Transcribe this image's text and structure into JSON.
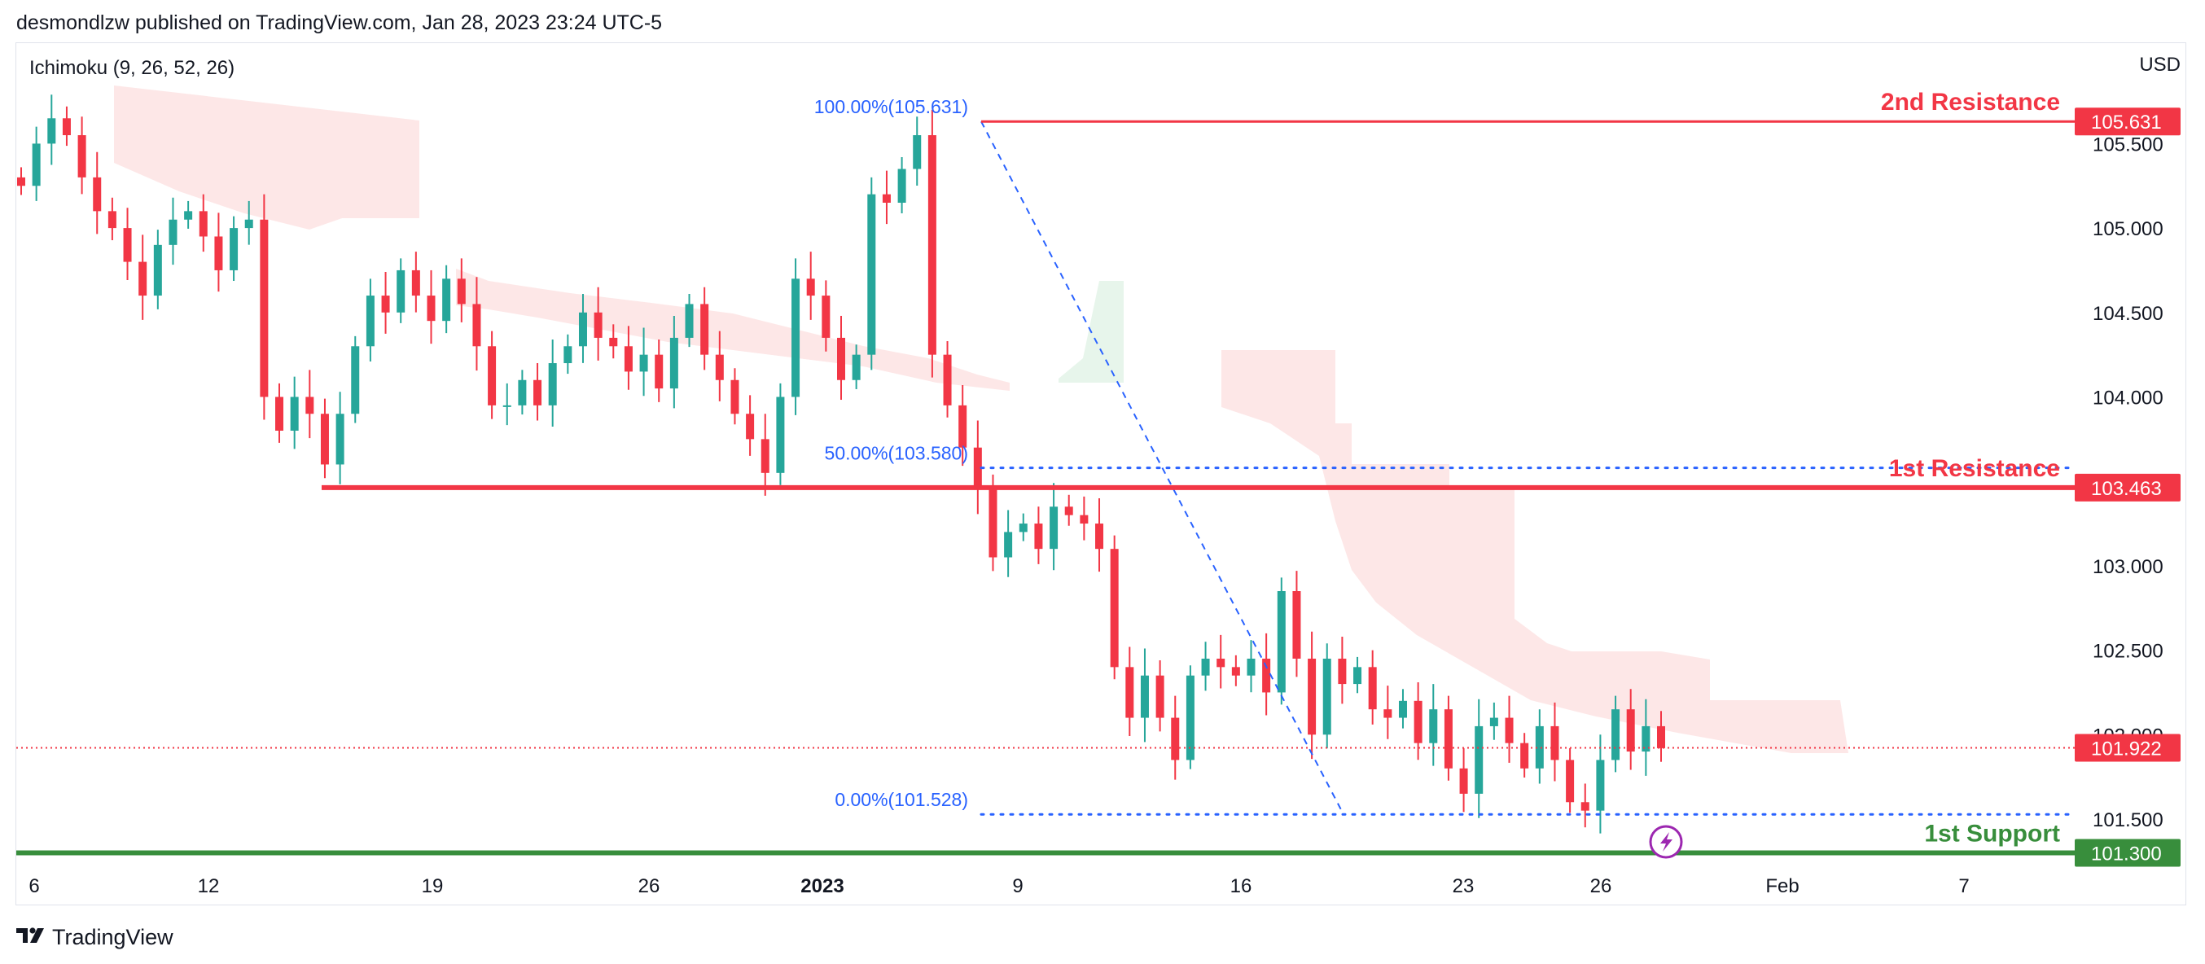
{
  "header": {
    "published_line": "desmondlzw published on TradingView.com, Jan 28, 2023 23:24 UTC-5"
  },
  "indicator": {
    "label": "Ichimoku (9, 26, 52, 26)"
  },
  "axis": {
    "currency": "USD"
  },
  "footer": {
    "brand": "TradingView"
  },
  "colors": {
    "up": "#26a69a",
    "down": "#f23645",
    "resistance": "#f23645",
    "support": "#388e3c",
    "fib": "#2962ff",
    "cloud_bear": "#fde3e3",
    "cloud_bull": "#e3f3e8",
    "current_price": "#f23645"
  },
  "chart_data": {
    "type": "candlestick",
    "title": "",
    "x_tick_labels": [
      "6",
      "12",
      "19",
      "26",
      "2023",
      "9",
      "16",
      "23",
      "26",
      "Feb",
      "7"
    ],
    "y_tick_labels": [
      "105.500",
      "105.000",
      "104.500",
      "104.000",
      "103.000",
      "102.500",
      "102.000",
      "101.500"
    ],
    "ylim": [
      101.2,
      105.85
    ],
    "grid": false,
    "levels": [
      {
        "name": "2nd Resistance",
        "value": 105.631,
        "label": "105.631",
        "color": "#f23645"
      },
      {
        "name": "1st Resistance",
        "value": 103.463,
        "label": "103.463",
        "color": "#f23645"
      },
      {
        "name": "1st Support",
        "value": 101.3,
        "label": "101.300",
        "color": "#388e3c"
      }
    ],
    "current_price": {
      "value": 101.922,
      "label": "101.922"
    },
    "fibonacci": [
      {
        "label": "100.00%(105.631)",
        "value": 105.631
      },
      {
        "label": "50.00%(103.580)",
        "value": 103.58
      },
      {
        "label": "0.00%(101.528)",
        "value": 101.528
      }
    ],
    "close_series": [
      105.25,
      105.5,
      105.65,
      105.55,
      105.3,
      105.1,
      105.0,
      104.8,
      104.6,
      104.9,
      105.05,
      105.1,
      104.95,
      104.75,
      105.0,
      105.05,
      104.0,
      103.8,
      104.0,
      103.9,
      103.6,
      103.9,
      104.3,
      104.6,
      104.5,
      104.75,
      104.6,
      104.45,
      104.7,
      104.55,
      104.3,
      103.95,
      103.95,
      104.1,
      103.95,
      104.2,
      104.3,
      104.5,
      104.35,
      104.3,
      104.15,
      104.25,
      104.05,
      104.35,
      104.55,
      104.25,
      104.1,
      103.9,
      103.75,
      103.55,
      104.0,
      104.7,
      104.6,
      104.35,
      104.1,
      104.25,
      105.2,
      105.15,
      105.35,
      105.55,
      104.25,
      103.95,
      103.7,
      103.45,
      103.05,
      103.2,
      103.25,
      103.1,
      103.35,
      103.3,
      103.25,
      103.1,
      102.4,
      102.1,
      102.35,
      102.1,
      101.85,
      102.35,
      102.45,
      102.4,
      102.35,
      102.45,
      102.25,
      102.85,
      102.45,
      102.0,
      102.45,
      102.3,
      102.4,
      102.15,
      102.1,
      102.2,
      101.95,
      102.15,
      101.8,
      101.65,
      102.05,
      102.1,
      101.95,
      101.8,
      102.05,
      101.85,
      101.6,
      101.55,
      101.85,
      102.15,
      101.9,
      102.05,
      101.92
    ]
  }
}
